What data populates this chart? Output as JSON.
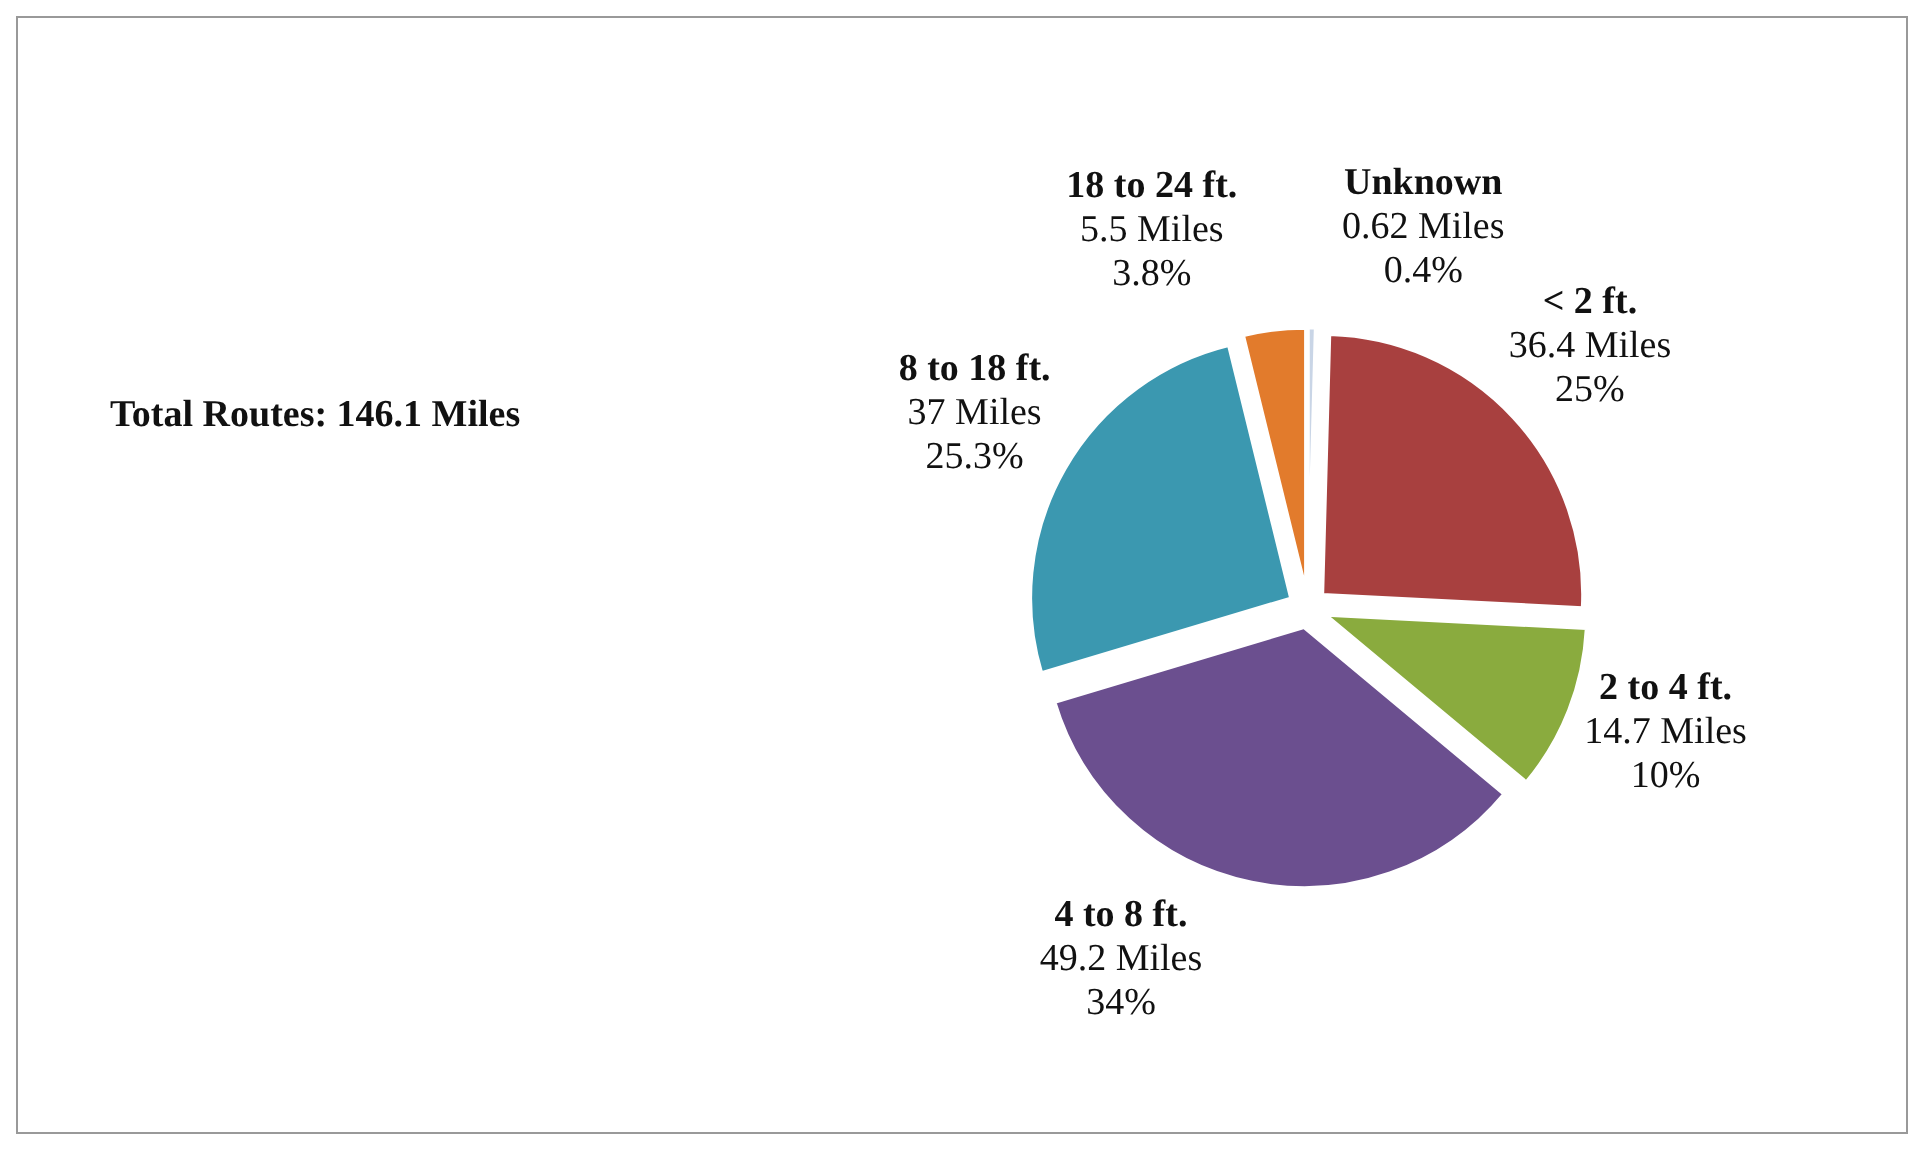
{
  "chart_data": {
    "type": "pie",
    "title": "Total Routes: 146.1 Miles",
    "categories": [
      "Unknown",
      "< 2 ft.",
      "2 to 4 ft.",
      "4 to 8 ft.",
      "8 to 18 ft.",
      "18 to 24 ft."
    ],
    "values": [
      0.62,
      36.4,
      14.7,
      49.2,
      37,
      5.5
    ],
    "value_labels": [
      "0.62 Miles\n0.4%",
      "36.4 Miles\n25%",
      "14.7 Miles\n10%",
      "49.2 Miles\n34%",
      "37 Miles\n25.3%",
      "5.5 Miles\n3.8%"
    ],
    "colors": [
      "#c9d5e6",
      "#a8403f",
      "#8aab3e",
      "#6b4f8f",
      "#3b98b0",
      "#e27b2c"
    ],
    "legend": false
  }
}
